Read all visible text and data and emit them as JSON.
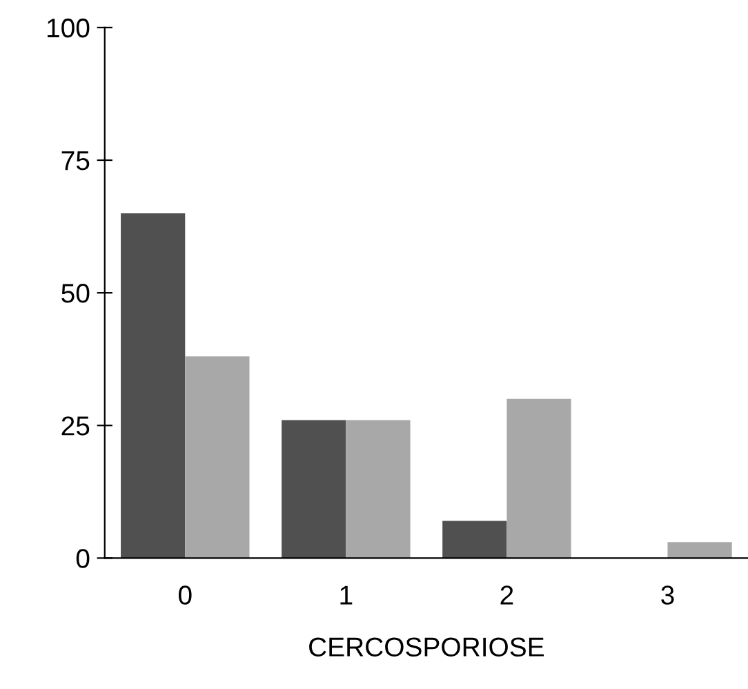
{
  "chart_data": {
    "type": "bar",
    "xlabel": "CERCOSPORIOSE",
    "categories": [
      "0",
      "1",
      "2",
      "3"
    ],
    "series": [
      {
        "color": "#505050",
        "values": [
          65,
          26,
          7,
          0
        ]
      },
      {
        "color": "#a8a8a8",
        "values": [
          38,
          26,
          30,
          3
        ]
      }
    ],
    "ylim": [
      0,
      100
    ],
    "yticks": [
      0,
      25,
      50,
      75,
      100
    ],
    "grid": false,
    "legend": false
  }
}
